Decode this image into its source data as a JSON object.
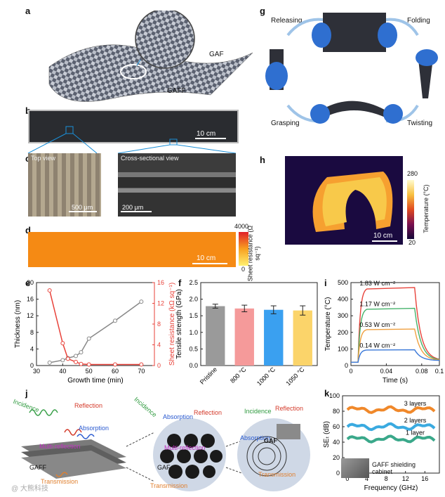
{
  "panels": {
    "a": {
      "letter": "a",
      "label_gaf": "GAF",
      "label_gaff": "GAFF"
    },
    "b": {
      "letter": "b",
      "scalebar": "10 cm"
    },
    "c": {
      "letter": "c",
      "top_title": "Top view",
      "top_scale": "500 μm",
      "cross_title": "Cross-sectional view",
      "cross_scale": "200 μm"
    },
    "d": {
      "letter": "d",
      "scalebar": "10 cm",
      "cbar_max": "4000",
      "cbar_min": "0",
      "cbar_label": "Sheet resistance (Ω sq⁻¹)"
    },
    "e": {
      "letter": "e"
    },
    "f": {
      "letter": "f"
    },
    "g": {
      "letter": "g",
      "releasing": "Releasing",
      "folding": "Folding",
      "grasping": "Grasping",
      "twisting": "Twisting"
    },
    "h": {
      "letter": "h",
      "scalebar": "10 cm",
      "cbar_max": "280",
      "cbar_min": "20",
      "cbar_label": "Temperature (°C)"
    },
    "i": {
      "letter": "i"
    },
    "j": {
      "letter": "j",
      "incidence": "Incidence",
      "reflection": "Reflection",
      "absorption": "Absorption",
      "multi_reflection": "Multi-reflection",
      "transmission": "Transmission",
      "gaff": "GAFF",
      "gaf": "GAF"
    },
    "k": {
      "letter": "k",
      "cabinet": "GAFF shielding cabinet"
    }
  },
  "watermark": "@ 大熊科技",
  "chart_data": [
    {
      "id": "e",
      "type": "line",
      "xlabel": "Growth time (min)",
      "ylabel": "Thickness (nm)",
      "y2label": "Sheet resistance (kΩ sq⁻¹)",
      "xlim": [
        30,
        75
      ],
      "ylim": [
        0,
        20
      ],
      "y2lim": [
        0,
        16
      ],
      "xticks": [
        30,
        40,
        50,
        60,
        70
      ],
      "yticks": [
        0,
        4,
        8,
        12,
        16,
        20
      ],
      "y2ticks": [
        0,
        4,
        8,
        12,
        16
      ],
      "series": [
        {
          "name": "Thickness",
          "axis": "left",
          "color": "#888888",
          "x": [
            35,
            40,
            42,
            45,
            47,
            50,
            60,
            70
          ],
          "y": [
            0.7,
            1.3,
            1.8,
            2.3,
            3.2,
            6.5,
            10.8,
            15.4
          ]
        },
        {
          "name": "Sheet resistance",
          "axis": "right",
          "color": "#e8423a",
          "x": [
            35,
            40,
            42,
            45,
            47,
            50,
            60,
            70
          ],
          "y": [
            14.5,
            4.3,
            1.3,
            0.7,
            0.3,
            0.2,
            0.2,
            0.2
          ]
        }
      ]
    },
    {
      "id": "f",
      "type": "bar",
      "ylabel": "Tensile strength (GPa)",
      "ylim": [
        0,
        2.5
      ],
      "yticks": [
        0.0,
        0.5,
        1.0,
        1.5,
        2.0,
        2.5
      ],
      "categories": [
        "Pristine",
        "800 °C",
        "1000 °C",
        "1050 °C"
      ],
      "values": [
        1.79,
        1.72,
        1.68,
        1.66
      ],
      "errors": [
        0.06,
        0.1,
        0.12,
        0.14
      ],
      "colors": [
        "#9a9a9a",
        "#f59a9a",
        "#3aa0f0",
        "#fbd46a"
      ]
    },
    {
      "id": "i",
      "type": "line",
      "xlabel": "Time (s)",
      "ylabel": "Temperature (°C)",
      "xlim": [
        0,
        0.1
      ],
      "ylim": [
        0,
        500
      ],
      "xticks": [
        0,
        0.04,
        0.08,
        0.1
      ],
      "xticklabels": [
        "0",
        "0.04",
        "0.08",
        "0.1"
      ],
      "yticks": [
        0,
        100,
        200,
        300,
        400,
        500
      ],
      "series": [
        {
          "name": "1.83 W cm⁻²",
          "color": "#e8423a",
          "plateau": 470
        },
        {
          "name": "1.17 W cm⁻²",
          "color": "#45b36b",
          "plateau": 345
        },
        {
          "name": "0.53 W cm⁻²",
          "color": "#f0a040",
          "plateau": 220
        },
        {
          "name": "0.14 W cm⁻²",
          "color": "#3a78d8",
          "plateau": 95
        }
      ]
    },
    {
      "id": "k",
      "type": "line",
      "xlabel": "Frequency (GHz)",
      "ylabel": "SEₜ (dB)",
      "xlim": [
        -1,
        19
      ],
      "ylim": [
        0,
        100
      ],
      "xticks": [
        0,
        4,
        8,
        12,
        16
      ],
      "yticks": [
        0,
        20,
        40,
        60,
        80,
        100
      ],
      "series": [
        {
          "name": "3 layers",
          "color": "#f0882a",
          "level": 82
        },
        {
          "name": "2 layers",
          "color": "#3aaae0",
          "level": 60
        },
        {
          "name": "1 layer",
          "color": "#3aa88a",
          "level": 44
        }
      ]
    }
  ]
}
